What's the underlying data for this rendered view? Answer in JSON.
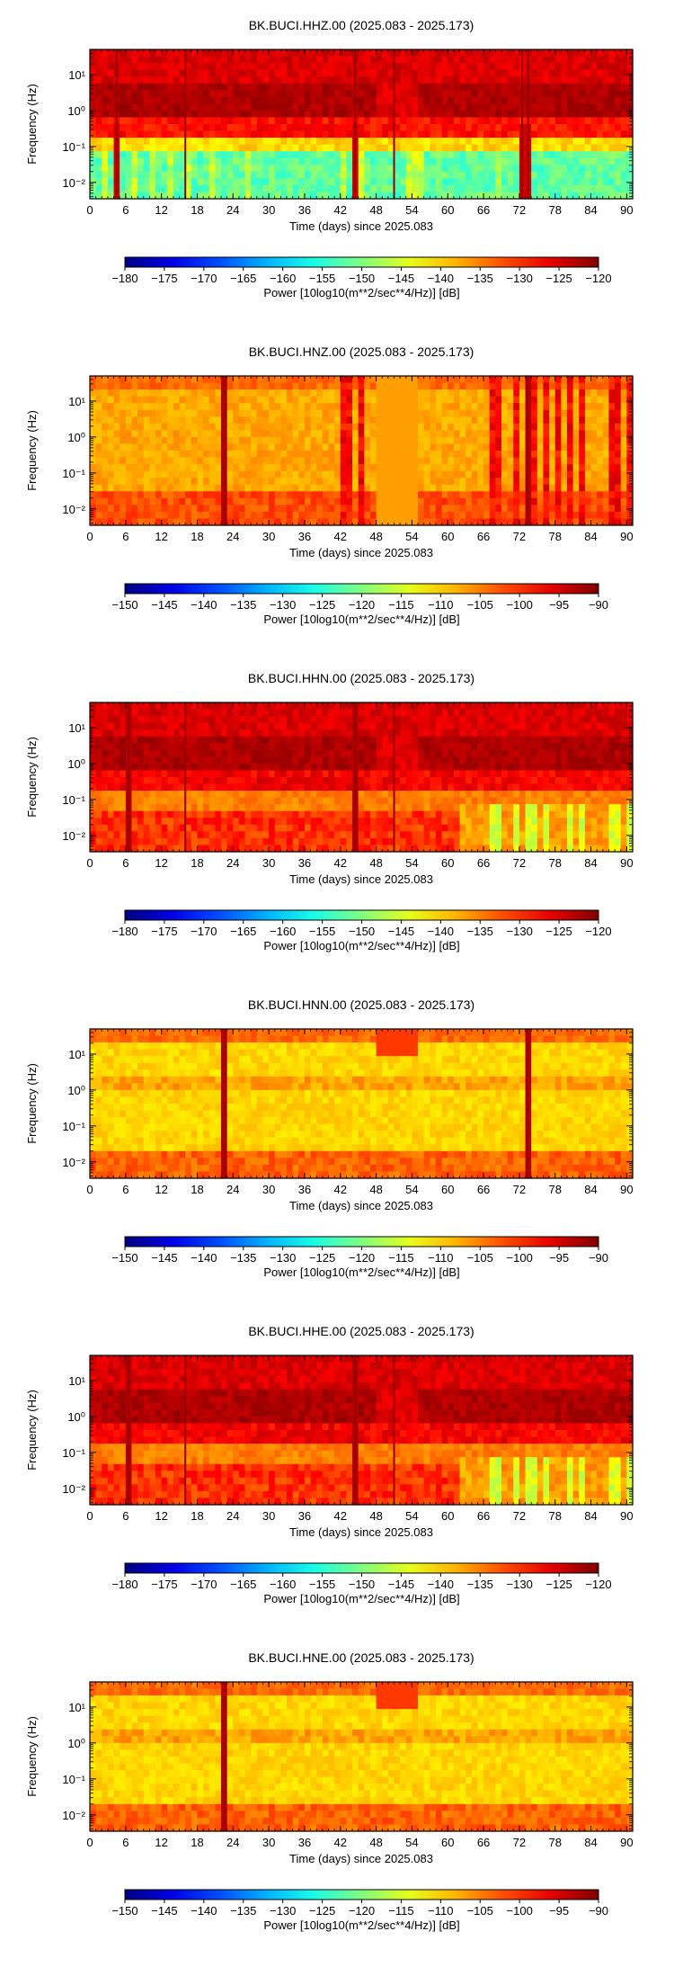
{
  "chart_data": [
    {
      "type": "heatmap",
      "title": "BK.BUCI.HHZ.00 (2025.083 - 2025.173)",
      "xlabel": "Time (days) since 2025.083",
      "ylabel": "Frequency (Hz)",
      "xlim": [
        0,
        91
      ],
      "x_ticks": [
        "0",
        "6",
        "12",
        "18",
        "24",
        "30",
        "36",
        "42",
        "48",
        "54",
        "60",
        "66",
        "72",
        "78",
        "84",
        "90"
      ],
      "y_scale": "log",
      "ylim": [
        0.0035,
        50
      ],
      "y_ticks": [
        "10⁻²",
        "10⁻¹",
        "10⁰",
        "10¹"
      ],
      "colorbar": {
        "label": "Power [10log10(m**2/sec**4/Hz)] [dB]",
        "range": [
          -180,
          -120
        ],
        "ticks": [
          "−180",
          "−175",
          "−170",
          "−165",
          "−160",
          "−155",
          "−150",
          "−145",
          "−140",
          "−135",
          "−130",
          "−125",
          "−120"
        ]
      },
      "profile": "broadband",
      "vertical_stripes_days": [
        4.5,
        16,
        44.5,
        51,
        72.5,
        73.5
      ]
    },
    {
      "type": "heatmap",
      "title": "BK.BUCI.HNZ.00 (2025.083 - 2025.173)",
      "xlabel": "Time (days) since 2025.083",
      "ylabel": "Frequency (Hz)",
      "xlim": [
        0,
        91
      ],
      "x_ticks": [
        "0",
        "6",
        "12",
        "18",
        "24",
        "30",
        "36",
        "42",
        "48",
        "54",
        "60",
        "66",
        "72",
        "78",
        "84",
        "90"
      ],
      "y_scale": "log",
      "ylim": [
        0.0035,
        50
      ],
      "y_ticks": [
        "10⁻²",
        "10⁻¹",
        "10⁰",
        "10¹"
      ],
      "colorbar": {
        "label": "Power [10log10(m**2/sec**4/Hz)] [dB]",
        "range": [
          -150,
          -90
        ],
        "ticks": [
          "−150",
          "−145",
          "−140",
          "−135",
          "−130",
          "−125",
          "−120",
          "−115",
          "−110",
          "−105",
          "−100",
          "−95",
          "−90"
        ]
      },
      "profile": "strong_z",
      "vertical_stripes_days": [
        22.8,
        73.3
      ]
    },
    {
      "type": "heatmap",
      "title": "BK.BUCI.HHN.00 (2025.083 - 2025.173)",
      "xlabel": "Time (days) since 2025.083",
      "ylabel": "Frequency (Hz)",
      "xlim": [
        0,
        91
      ],
      "x_ticks": [
        "0",
        "6",
        "12",
        "18",
        "24",
        "30",
        "36",
        "42",
        "48",
        "54",
        "60",
        "66",
        "72",
        "78",
        "84",
        "90"
      ],
      "y_scale": "log",
      "ylim": [
        0.0035,
        50
      ],
      "y_ticks": [
        "10⁻²",
        "10⁻¹",
        "10⁰",
        "10¹"
      ],
      "colorbar": {
        "label": "Power [10log10(m**2/sec**4/Hz)] [dB]",
        "range": [
          -180,
          -120
        ],
        "ticks": [
          "−180",
          "−175",
          "−170",
          "−165",
          "−160",
          "−155",
          "−150",
          "−145",
          "−140",
          "−135",
          "−130",
          "−125",
          "−120"
        ]
      },
      "profile": "broadband_horizontal",
      "vertical_stripes_days": [
        6.5,
        16,
        44.5,
        51
      ]
    },
    {
      "type": "heatmap",
      "title": "BK.BUCI.HNN.00 (2025.083 - 2025.173)",
      "xlabel": "Time (days) since 2025.083",
      "ylabel": "Frequency (Hz)",
      "xlim": [
        0,
        91
      ],
      "x_ticks": [
        "0",
        "6",
        "12",
        "18",
        "24",
        "30",
        "36",
        "42",
        "48",
        "54",
        "60",
        "66",
        "72",
        "78",
        "84",
        "90"
      ],
      "y_scale": "log",
      "ylim": [
        0.0035,
        50
      ],
      "y_ticks": [
        "10⁻²",
        "10⁻¹",
        "10⁰",
        "10¹"
      ],
      "colorbar": {
        "label": "Power [10log10(m**2/sec**4/Hz)] [dB]",
        "range": [
          -150,
          -90
        ],
        "ticks": [
          "−150",
          "−145",
          "−140",
          "−135",
          "−130",
          "−125",
          "−120",
          "−115",
          "−110",
          "−105",
          "−100",
          "−95",
          "−90"
        ]
      },
      "profile": "strong_horizontal",
      "vertical_stripes_days": [
        22.8,
        73.3
      ]
    },
    {
      "type": "heatmap",
      "title": "BK.BUCI.HHE.00 (2025.083 - 2025.173)",
      "xlabel": "Time (days) since 2025.083",
      "ylabel": "Frequency (Hz)",
      "xlim": [
        0,
        91
      ],
      "x_ticks": [
        "0",
        "6",
        "12",
        "18",
        "24",
        "30",
        "36",
        "42",
        "48",
        "54",
        "60",
        "66",
        "72",
        "78",
        "84",
        "90"
      ],
      "y_scale": "log",
      "ylim": [
        0.0035,
        50
      ],
      "y_ticks": [
        "10⁻²",
        "10⁻¹",
        "10⁰",
        "10¹"
      ],
      "colorbar": {
        "label": "Power [10log10(m**2/sec**4/Hz)] [dB]",
        "range": [
          -180,
          -120
        ],
        "ticks": [
          "−180",
          "−175",
          "−170",
          "−165",
          "−160",
          "−155",
          "−150",
          "−145",
          "−140",
          "−135",
          "−130",
          "−125",
          "−120"
        ]
      },
      "profile": "broadband_horizontal",
      "vertical_stripes_days": [
        6.5,
        16,
        44.5,
        51
      ]
    },
    {
      "type": "heatmap",
      "title": "BK.BUCI.HNE.00 (2025.083 - 2025.173)",
      "xlabel": "Time (days) since 2025.083",
      "ylabel": "Frequency (Hz)",
      "xlim": [
        0,
        91
      ],
      "x_ticks": [
        "0",
        "6",
        "12",
        "18",
        "24",
        "30",
        "36",
        "42",
        "48",
        "54",
        "60",
        "66",
        "72",
        "78",
        "84",
        "90"
      ],
      "y_scale": "log",
      "ylim": [
        0.0035,
        50
      ],
      "y_ticks": [
        "10⁻²",
        "10⁻¹",
        "10⁰",
        "10¹"
      ],
      "colorbar": {
        "label": "Power [10log10(m**2/sec**4/Hz)] [dB]",
        "range": [
          -150,
          -90
        ],
        "ticks": [
          "−150",
          "−145",
          "−140",
          "−135",
          "−130",
          "−125",
          "−120",
          "−115",
          "−110",
          "−105",
          "−100",
          "−95",
          "−90"
        ]
      },
      "profile": "strong_horizontal",
      "vertical_stripes_days": [
        22.8
      ]
    }
  ]
}
